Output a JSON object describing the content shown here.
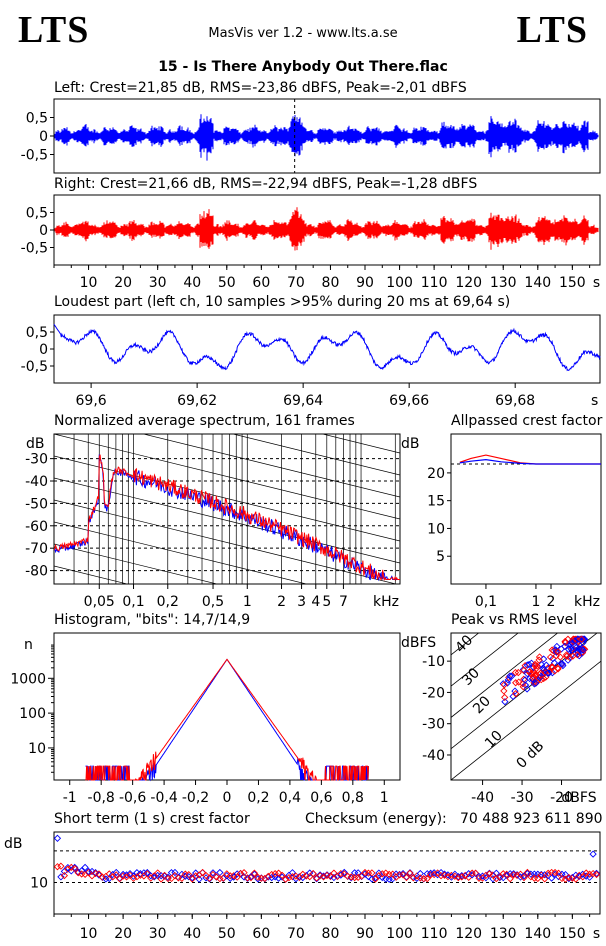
{
  "header": {
    "logo_left": "LTS",
    "logo_right": "LTS",
    "app_title": "MasVis ver 1.2 - www.lts.a.se",
    "file_name": "15 - Is There Anybody Out There.flac"
  },
  "colors": {
    "left": "#0000ff",
    "right": "#ff0000"
  },
  "chart_data": [
    {
      "type": "line",
      "title": "Left: Crest=21,85 dB, RMS=-23,86 dBFS, Peak=-2,01 dBFS",
      "y_ticks": [
        "0,5",
        "0",
        "-0,5"
      ],
      "ylim": [
        -1,
        1
      ],
      "channel": "left",
      "marker_s": 69.64
    },
    {
      "type": "line",
      "title": "Right: Crest=21,66 dB, RMS=-22,94 dBFS, Peak=-1,28 dBFS",
      "y_ticks": [
        "0,5",
        "0",
        "-0,5"
      ],
      "ylim": [
        -1,
        1
      ],
      "channel": "right",
      "x_ticks": [
        "10",
        "20",
        "30",
        "40",
        "50",
        "60",
        "70",
        "80",
        "90",
        "100",
        "110",
        "120",
        "130",
        "140",
        "150",
        "s"
      ],
      "xlim": [
        0,
        158
      ]
    },
    {
      "type": "line",
      "title": "Loudest part (left  ch, 10 samples >95% during 20 ms at 69,64 s)",
      "y_ticks": [
        "0,5",
        "0",
        "-0,5"
      ],
      "x_ticks": [
        "69,6",
        "69,62",
        "69,64",
        "69,66",
        "69,68",
        "s"
      ],
      "xlim": [
        69.593,
        69.696
      ]
    },
    {
      "type": "line",
      "title": "Normalized average spectrum, 161 frames",
      "ylabel": "dB",
      "y_ticks": [
        "-30",
        "-40",
        "-50",
        "-60",
        "-70",
        "-80"
      ],
      "x_ticks": [
        "0,05",
        "0,1",
        "0,2",
        "0,5",
        "1",
        "2",
        "3",
        "4",
        "5",
        "7",
        "kHz"
      ],
      "xlim_khz": [
        0.02,
        22
      ],
      "ylim": [
        -86,
        -19
      ]
    },
    {
      "type": "line",
      "title": "Allpassed crest factor",
      "ylabel": "dB",
      "y_ticks": [
        "20",
        "15",
        "10",
        "5"
      ],
      "x_ticks": [
        "0,1",
        "1",
        "2",
        "kHz"
      ],
      "ylim": [
        0,
        27
      ],
      "points_left": [
        [
          0.03,
          21.8
        ],
        [
          0.05,
          22.1
        ],
        [
          0.1,
          22.4
        ],
        [
          0.2,
          22.0
        ],
        [
          0.5,
          21.7
        ],
        [
          1,
          21.6
        ],
        [
          20,
          21.6
        ]
      ],
      "points_right": [
        [
          0.03,
          21.9
        ],
        [
          0.05,
          22.6
        ],
        [
          0.1,
          23.2
        ],
        [
          0.2,
          22.6
        ],
        [
          0.5,
          21.8
        ],
        [
          1,
          21.6
        ],
        [
          20,
          21.6
        ]
      ]
    },
    {
      "type": "line",
      "title": "Histogram, \"bits\": 14,7/14,9",
      "ylabel": "n",
      "y_ticks": [
        "1000",
        "100",
        "10"
      ],
      "x_ticks": [
        "-1",
        "-0,8",
        "-0,6",
        "-0,4",
        "-0,2",
        "0",
        "0,2",
        "0,4",
        "0,6",
        "0,8",
        "1"
      ],
      "xlim": [
        -1.1,
        1.1
      ],
      "peak_n": 3500
    },
    {
      "type": "scatter",
      "title": "Peak vs RMS level",
      "ylabel": "dBFS",
      "xlabel": "dBFS",
      "y_ticks": [
        "-10",
        "-20",
        "-30",
        "-40"
      ],
      "x_ticks": [
        "-40",
        "-30",
        "-20",
        "dBFS"
      ],
      "diag_labels": [
        "40",
        "30",
        "20",
        "10",
        "0 dB"
      ],
      "xlim": [
        -48,
        -10
      ],
      "ylim": [
        -48,
        -1
      ]
    },
    {
      "type": "scatter",
      "title": "Short term (1 s) crest factor",
      "checksum_label": "Checksum (energy):",
      "checksum_value": "70 488 923 611 890",
      "ylabel": "dB",
      "y_ticks": [
        "10"
      ],
      "x_ticks": [
        "10",
        "20",
        "30",
        "40",
        "50",
        "60",
        "70",
        "80",
        "90",
        "100",
        "110",
        "120",
        "130",
        "140",
        "150",
        "s"
      ],
      "xlim": [
        0,
        158
      ]
    }
  ]
}
